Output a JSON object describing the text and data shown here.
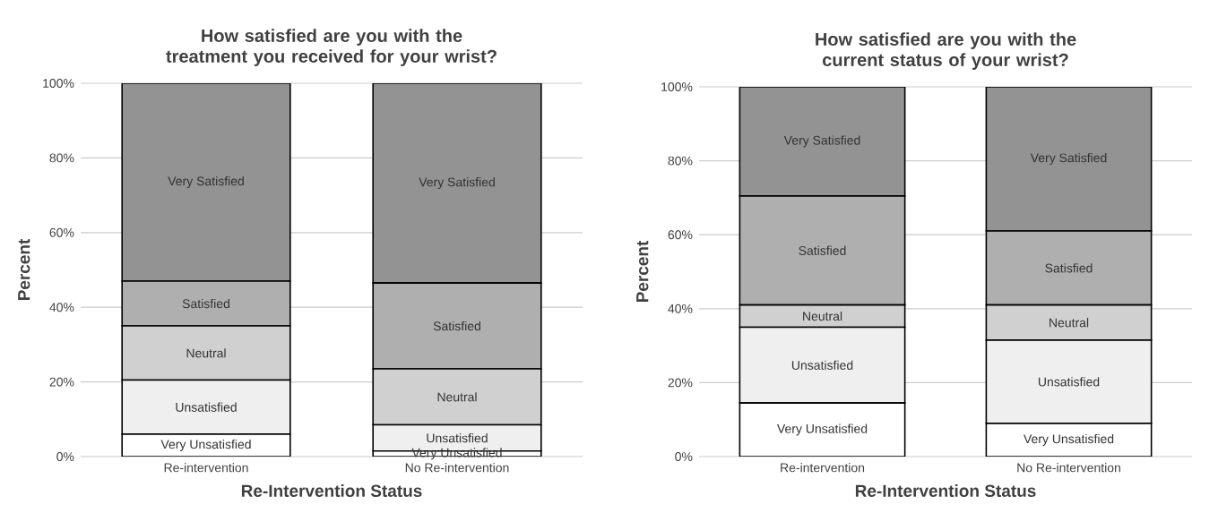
{
  "chart_data": [
    {
      "type": "bar",
      "stacked": true,
      "title": "How satisfied are you with the treatment you received for your wrist?",
      "xlabel": "Re-Intervention Status",
      "ylabel": "Percent",
      "categories": [
        "Re-intervention",
        "No Re-intervention"
      ],
      "ylim": [
        0,
        100
      ],
      "yticks": [
        {
          "value": 0,
          "label": "0%"
        },
        {
          "value": 20,
          "label": "20%"
        },
        {
          "value": 40,
          "label": "40%"
        },
        {
          "value": 60,
          "label": "60%"
        },
        {
          "value": 80,
          "label": "80%"
        },
        {
          "value": 100,
          "label": "100%"
        }
      ],
      "grid": "y",
      "series": [
        {
          "name": "Very Unsatisfied",
          "color": "#ffffff",
          "values": [
            6,
            1.5
          ]
        },
        {
          "name": "Unsatisfied",
          "color": "#efefef",
          "values": [
            14.5,
            7
          ]
        },
        {
          "name": "Neutral",
          "color": "#d0d0d0",
          "values": [
            14.5,
            15
          ]
        },
        {
          "name": "Satisfied",
          "color": "#afafaf",
          "values": [
            12,
            23
          ]
        },
        {
          "name": "Very Satisfied",
          "color": "#939393",
          "values": [
            53,
            53.5
          ]
        }
      ]
    },
    {
      "type": "bar",
      "stacked": true,
      "title": "How satisfied are you with the current status of your wrist?",
      "xlabel": "Re-Intervention Status",
      "ylabel": "Percent",
      "categories": [
        "Re-intervention",
        "No Re-intervention"
      ],
      "ylim": [
        0,
        100
      ],
      "yticks": [
        {
          "value": 0,
          "label": "0%"
        },
        {
          "value": 20,
          "label": "20%"
        },
        {
          "value": 40,
          "label": "40%"
        },
        {
          "value": 60,
          "label": "60%"
        },
        {
          "value": 80,
          "label": "80%"
        },
        {
          "value": 100,
          "label": "100%"
        }
      ],
      "grid": "y",
      "series": [
        {
          "name": "Very Unsatisfied",
          "color": "#ffffff",
          "values": [
            14.5,
            9
          ]
        },
        {
          "name": "Unsatisfied",
          "color": "#efefef",
          "values": [
            20.5,
            22.5
          ]
        },
        {
          "name": "Neutral",
          "color": "#d0d0d0",
          "values": [
            6,
            9.5
          ]
        },
        {
          "name": "Satisfied",
          "color": "#afafaf",
          "values": [
            29.5,
            20
          ]
        },
        {
          "name": "Very Satisfied",
          "color": "#939393",
          "values": [
            29.5,
            39
          ]
        }
      ]
    }
  ]
}
